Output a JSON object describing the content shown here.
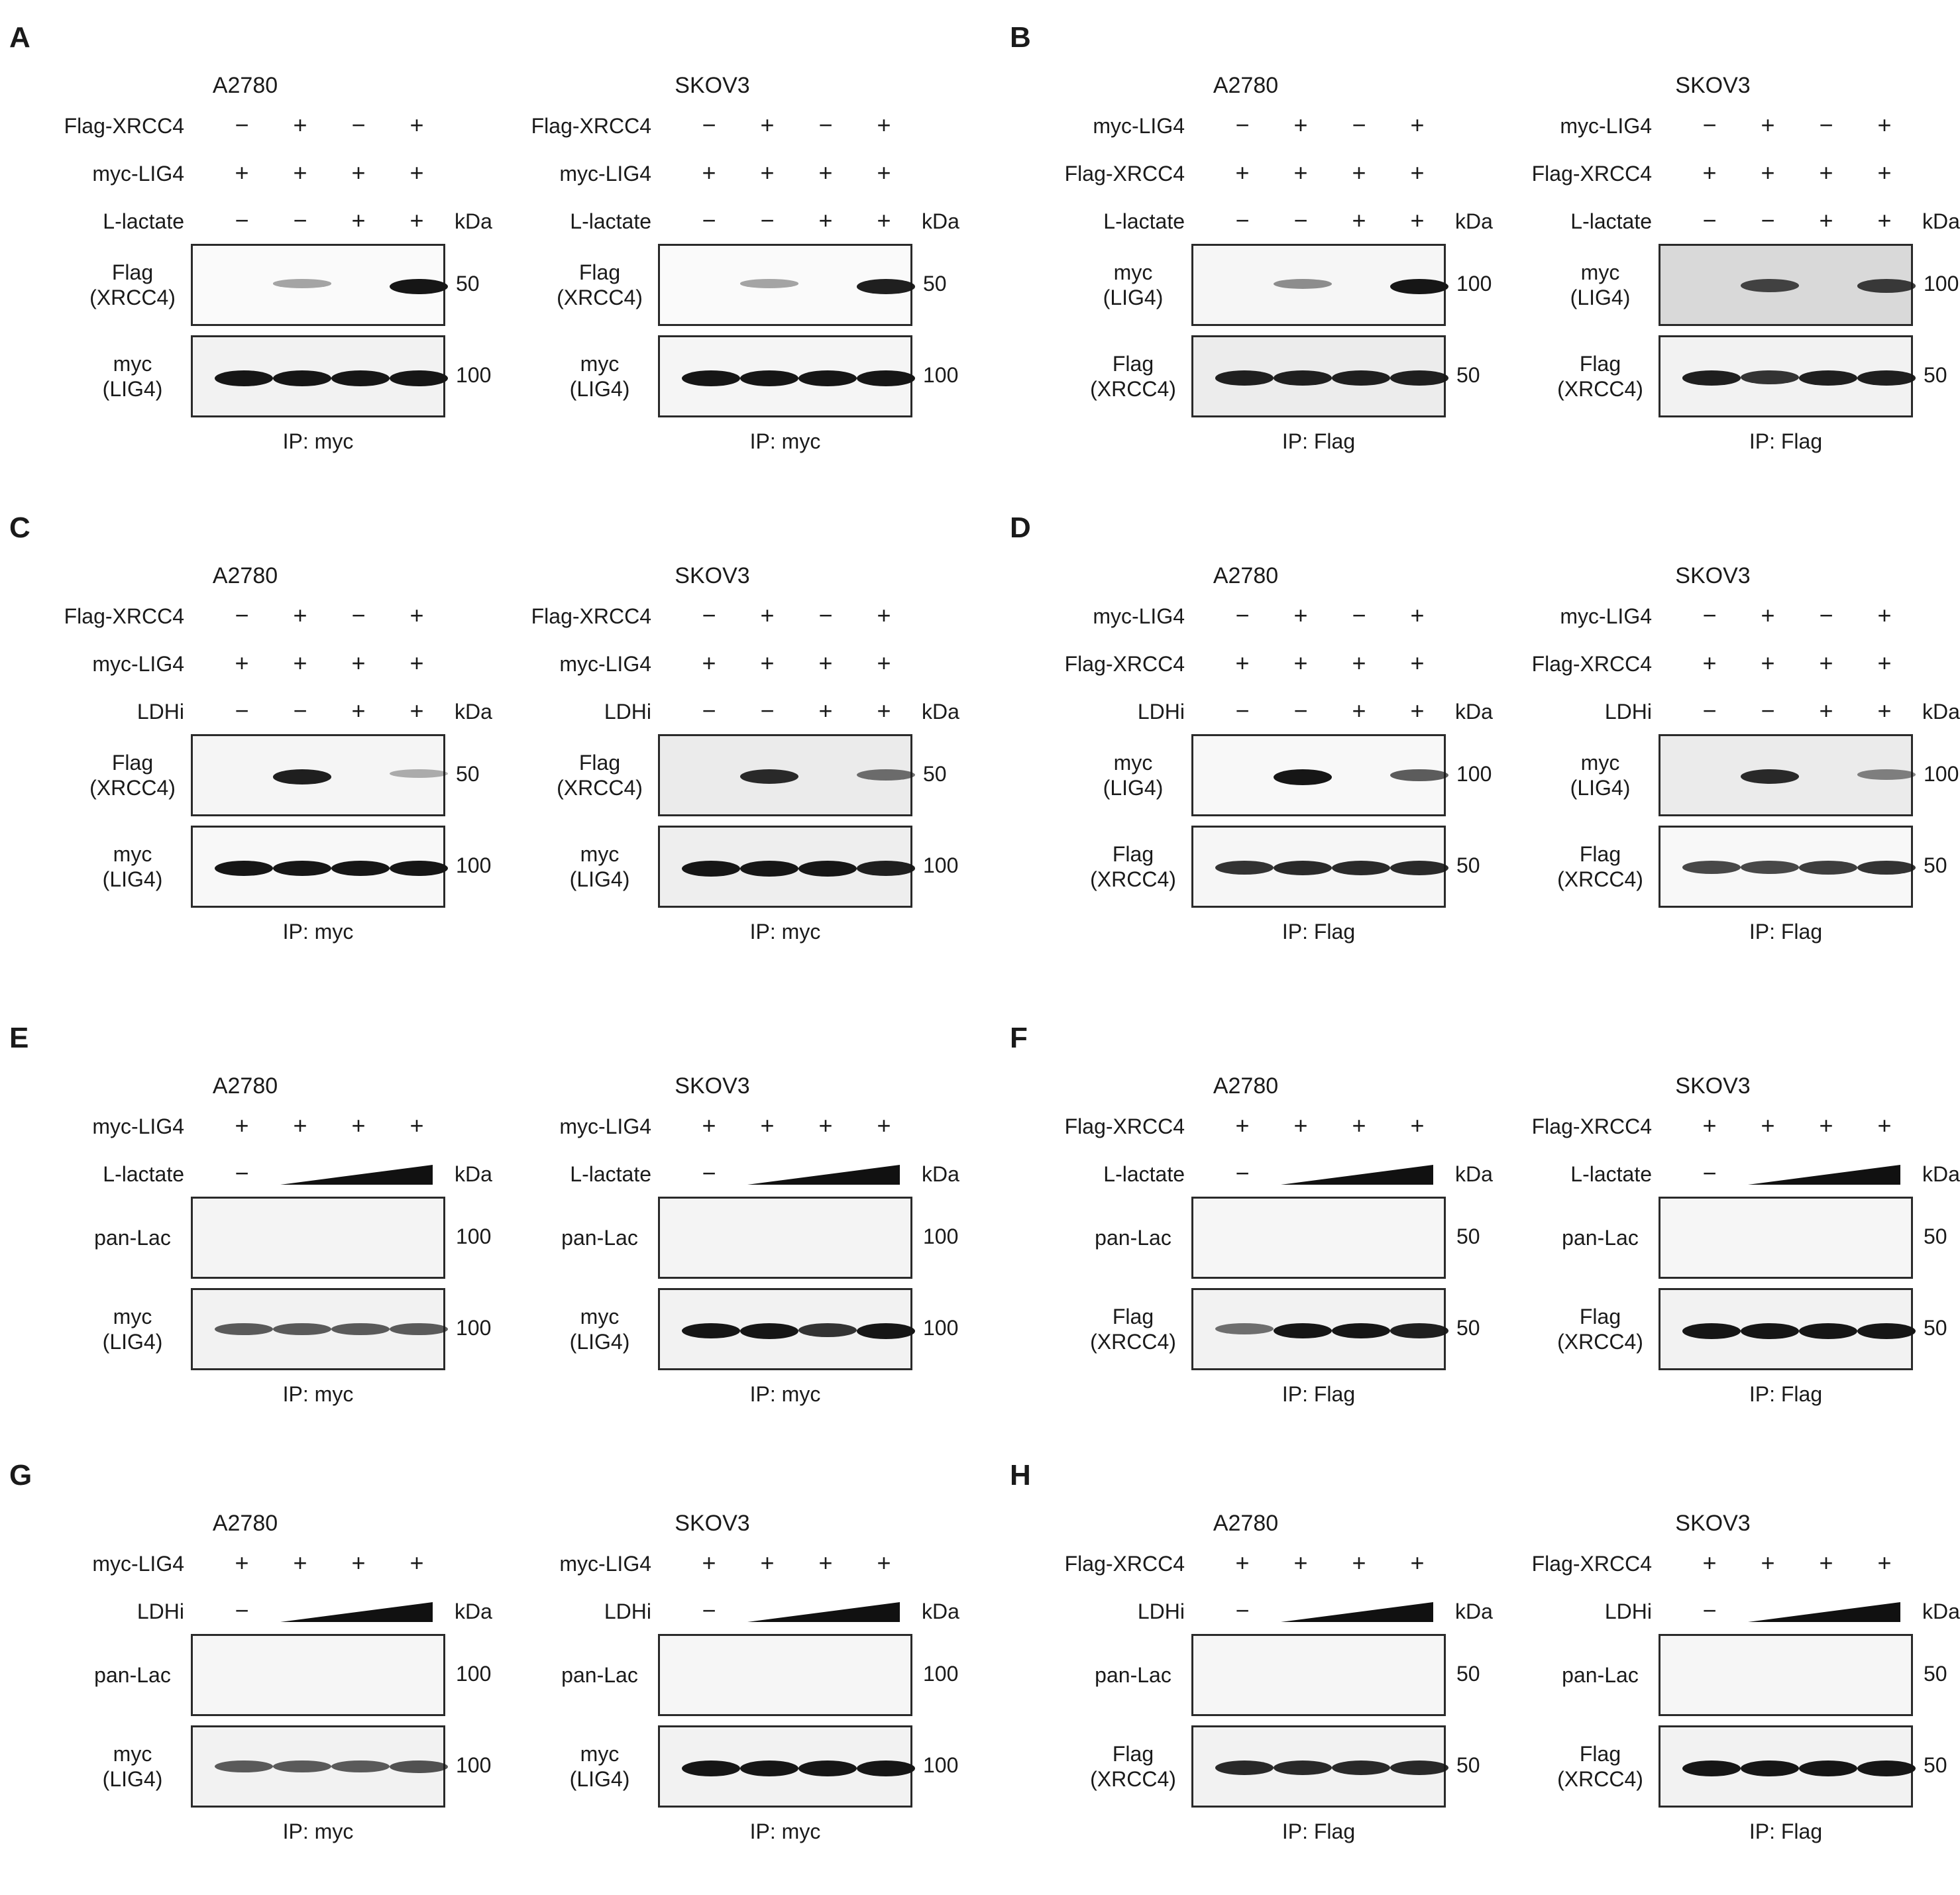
{
  "panels": [
    {
      "letter": "A",
      "blots": [
        {
          "title": "A2780",
          "conditions": [
            {
              "label": "Flag-XRCC4",
              "values": [
                "−",
                "+",
                "−",
                "+"
              ]
            },
            {
              "label": "myc-LIG4",
              "values": [
                "+",
                "+",
                "+",
                "+"
              ]
            },
            {
              "label": "L-lactate",
              "values": [
                "−",
                "−",
                "+",
                "+"
              ]
            }
          ],
          "kda": "kDa",
          "gels": [
            {
              "label": "Flag\n(XRCC4)",
              "mw": "50",
              "bands": [
                0,
                0.25,
                0,
                0.95
              ],
              "bg": "#fafafa"
            },
            {
              "label": "myc\n(LIG4)",
              "mw": "100",
              "bands": [
                1,
                1,
                1,
                1
              ],
              "bg": "#f2f2f2"
            }
          ],
          "ip": "IP: myc"
        },
        {
          "title": "SKOV3",
          "conditions": [
            {
              "label": "Flag-XRCC4",
              "values": [
                "−",
                "+",
                "−",
                "+"
              ]
            },
            {
              "label": "myc-LIG4",
              "values": [
                "+",
                "+",
                "+",
                "+"
              ]
            },
            {
              "label": "L-lactate",
              "values": [
                "−",
                "−",
                "+",
                "+"
              ]
            }
          ],
          "kda": "kDa",
          "gels": [
            {
              "label": "Flag\n(XRCC4)",
              "mw": "50",
              "bands": [
                0,
                0.25,
                0,
                0.9
              ],
              "bg": "#fafafa"
            },
            {
              "label": "myc\n(LIG4)",
              "mw": "100",
              "bands": [
                1,
                1,
                1,
                1
              ],
              "bg": "#f5f5f5"
            }
          ],
          "ip": "IP: myc"
        }
      ]
    },
    {
      "letter": "B",
      "blots": [
        {
          "title": "A2780",
          "conditions": [
            {
              "label": "myc-LIG4",
              "values": [
                "−",
                "+",
                "−",
                "+"
              ]
            },
            {
              "label": "Flag-XRCC4",
              "values": [
                "+",
                "+",
                "+",
                "+"
              ]
            },
            {
              "label": "L-lactate",
              "values": [
                "−",
                "−",
                "+",
                "+"
              ]
            }
          ],
          "kda": "kDa",
          "gels": [
            {
              "label": "myc\n(LIG4)",
              "mw": "100",
              "bands": [
                0,
                0.35,
                0,
                0.95
              ],
              "bg": "#f6f6f6"
            },
            {
              "label": "Flag\n(XRCC4)",
              "mw": "50",
              "bands": [
                0.9,
                0.9,
                0.9,
                0.9
              ],
              "bg": "#ececec"
            }
          ],
          "ip": "IP: Flag"
        },
        {
          "title": "SKOV3",
          "conditions": [
            {
              "label": "myc-LIG4",
              "values": [
                "−",
                "+",
                "−",
                "+"
              ]
            },
            {
              "label": "Flag-XRCC4",
              "values": [
                "+",
                "+",
                "+",
                "+"
              ]
            },
            {
              "label": "L-lactate",
              "values": [
                "−",
                "−",
                "+",
                "+"
              ]
            }
          ],
          "kda": "kDa",
          "gels": [
            {
              "label": "myc\n(LIG4)",
              "mw": "100",
              "bands": [
                0,
                0.7,
                0,
                0.75
              ],
              "bg": "#d9d9d9"
            },
            {
              "label": "Flag\n(XRCC4)",
              "mw": "50",
              "bands": [
                0.9,
                0.8,
                0.9,
                0.9
              ],
              "bg": "#f2f2f2"
            }
          ],
          "ip": "IP: Flag"
        }
      ]
    },
    {
      "letter": "C",
      "blots": [
        {
          "title": "A2780",
          "conditions": [
            {
              "label": "Flag-XRCC4",
              "values": [
                "−",
                "+",
                "−",
                "+"
              ]
            },
            {
              "label": "myc-LIG4",
              "values": [
                "+",
                "+",
                "+",
                "+"
              ]
            },
            {
              "label": "LDHi",
              "values": [
                "−",
                "−",
                "+",
                "+"
              ]
            }
          ],
          "kda": "kDa",
          "gels": [
            {
              "label": "Flag\n(XRCC4)",
              "mw": "50",
              "bands": [
                0,
                0.9,
                0,
                0.2
              ],
              "bg": "#f5f5f5"
            },
            {
              "label": "myc\n(LIG4)",
              "mw": "100",
              "bands": [
                0.95,
                0.95,
                0.95,
                0.95
              ],
              "bg": "#f8f8f8"
            }
          ],
          "ip": "IP: myc"
        },
        {
          "title": "SKOV3",
          "conditions": [
            {
              "label": "Flag-XRCC4",
              "values": [
                "−",
                "+",
                "−",
                "+"
              ]
            },
            {
              "label": "myc-LIG4",
              "values": [
                "+",
                "+",
                "+",
                "+"
              ]
            },
            {
              "label": "LDHi",
              "values": [
                "−",
                "−",
                "+",
                "+"
              ]
            }
          ],
          "kda": "kDa",
          "gels": [
            {
              "label": "Flag\n(XRCC4)",
              "mw": "50",
              "bands": [
                0,
                0.85,
                0,
                0.5
              ],
              "bg": "#ebebeb"
            },
            {
              "label": "myc\n(LIG4)",
              "mw": "100",
              "bands": [
                1,
                1,
                1,
                0.9
              ],
              "bg": "#eeeeee"
            }
          ],
          "ip": "IP: myc"
        }
      ]
    },
    {
      "letter": "D",
      "blots": [
        {
          "title": "A2780",
          "conditions": [
            {
              "label": "myc-LIG4",
              "values": [
                "−",
                "+",
                "−",
                "+"
              ]
            },
            {
              "label": "Flag-XRCC4",
              "values": [
                "+",
                "+",
                "+",
                "+"
              ]
            },
            {
              "label": "LDHi",
              "values": [
                "−",
                "−",
                "+",
                "+"
              ]
            }
          ],
          "kda": "kDa",
          "gels": [
            {
              "label": "myc\n(LIG4)",
              "mw": "100",
              "bands": [
                0,
                1,
                0,
                0.6
              ],
              "bg": "#f8f8f8"
            },
            {
              "label": "Flag\n(XRCC4)",
              "mw": "50",
              "bands": [
                0.8,
                0.85,
                0.85,
                0.85
              ],
              "bg": "#f6f6f6"
            }
          ],
          "ip": "IP: Flag"
        },
        {
          "title": "SKOV3",
          "conditions": [
            {
              "label": "myc-LIG4",
              "values": [
                "−",
                "+",
                "−",
                "+"
              ]
            },
            {
              "label": "Flag-XRCC4",
              "values": [
                "+",
                "+",
                "+",
                "+"
              ]
            },
            {
              "label": "LDHi",
              "values": [
                "−",
                "−",
                "+",
                "+"
              ]
            }
          ],
          "kda": "kDa",
          "gels": [
            {
              "label": "myc\n(LIG4)",
              "mw": "100",
              "bands": [
                0,
                0.85,
                0,
                0.4
              ],
              "bg": "#ebebeb"
            },
            {
              "label": "Flag\n(XRCC4)",
              "mw": "50",
              "bands": [
                0.7,
                0.7,
                0.75,
                0.8
              ],
              "bg": "#f8f8f8"
            }
          ],
          "ip": "IP: Flag"
        }
      ]
    },
    {
      "letter": "E",
      "blots": [
        {
          "title": "A2780",
          "conditions": [
            {
              "label": "myc-LIG4",
              "values": [
                "+",
                "+",
                "+",
                "+"
              ]
            },
            {
              "label": "L-lactate",
              "values": [
                "−"
              ],
              "wedge": true
            }
          ],
          "kda": "kDa",
          "gels": [
            {
              "label": "pan-Lac",
              "mw": "100",
              "bands": [
                0,
                0,
                0,
                0
              ],
              "bg": "#f4f4f4"
            },
            {
              "label": "myc\n(LIG4)",
              "mw": "100",
              "bands": [
                0.6,
                0.6,
                0.6,
                0.6
              ],
              "bg": "#f2f2f2"
            }
          ],
          "ip": "IP: myc"
        },
        {
          "title": "SKOV3",
          "conditions": [
            {
              "label": "myc-LIG4",
              "values": [
                "+",
                "+",
                "+",
                "+"
              ]
            },
            {
              "label": "L-lactate",
              "values": [
                "−"
              ],
              "wedge": true
            }
          ],
          "kda": "kDa",
          "gels": [
            {
              "label": "pan-Lac",
              "mw": "100",
              "bands": [
                0,
                0,
                0,
                0
              ],
              "bg": "#f4f4f4"
            },
            {
              "label": "myc\n(LIG4)",
              "mw": "100",
              "bands": [
                0.95,
                1,
                0.8,
                1
              ],
              "bg": "#f2f2f2"
            }
          ],
          "ip": "IP: myc"
        }
      ]
    },
    {
      "letter": "F",
      "blots": [
        {
          "title": "A2780",
          "conditions": [
            {
              "label": "Flag-XRCC4",
              "values": [
                "+",
                "+",
                "+",
                "+"
              ]
            },
            {
              "label": "L-lactate",
              "values": [
                "−"
              ],
              "wedge": true
            }
          ],
          "kda": "kDa",
          "gels": [
            {
              "label": "pan-Lac",
              "mw": "50",
              "bands": [
                0,
                0,
                0,
                0
              ],
              "bg": "#f6f6f6"
            },
            {
              "label": "Flag\n(XRCC4)",
              "mw": "50",
              "bands": [
                0.5,
                0.95,
                0.95,
                0.9
              ],
              "bg": "#f2f2f2"
            }
          ],
          "ip": "IP: Flag"
        },
        {
          "title": "SKOV3",
          "conditions": [
            {
              "label": "Flag-XRCC4",
              "values": [
                "+",
                "+",
                "+",
                "+"
              ]
            },
            {
              "label": "L-lactate",
              "values": [
                "−"
              ],
              "wedge": true
            }
          ],
          "kda": "kDa",
          "gels": [
            {
              "label": "pan-Lac",
              "mw": "50",
              "bands": [
                0,
                0,
                0,
                0
              ],
              "bg": "#f6f6f6"
            },
            {
              "label": "Flag\n(XRCC4)",
              "mw": "50",
              "bands": [
                1,
                1,
                1,
                1
              ],
              "bg": "#f2f2f2"
            }
          ],
          "ip": "IP: Flag"
        }
      ]
    },
    {
      "letter": "G",
      "blots": [
        {
          "title": "A2780",
          "conditions": [
            {
              "label": "myc-LIG4",
              "values": [
                "+",
                "+",
                "+",
                "+"
              ]
            },
            {
              "label": "LDHi",
              "values": [
                "−"
              ],
              "wedge": true
            }
          ],
          "kda": "kDa",
          "gels": [
            {
              "label": "pan-Lac",
              "mw": "100",
              "bands": [
                0,
                0,
                0,
                0
              ],
              "bg": "#f6f6f6"
            },
            {
              "label": "myc\n(LIG4)",
              "mw": "100",
              "bands": [
                0.6,
                0.6,
                0.6,
                0.65
              ],
              "bg": "#f2f2f2"
            }
          ],
          "ip": "IP: myc"
        },
        {
          "title": "SKOV3",
          "conditions": [
            {
              "label": "myc-LIG4",
              "values": [
                "+",
                "+",
                "+",
                "+"
              ]
            },
            {
              "label": "LDHi",
              "values": [
                "−"
              ],
              "wedge": true
            }
          ],
          "kda": "kDa",
          "gels": [
            {
              "label": "pan-Lac",
              "mw": "100",
              "bands": [
                0,
                0,
                0,
                0
              ],
              "bg": "#f6f6f6"
            },
            {
              "label": "myc\n(LIG4)",
              "mw": "100",
              "bands": [
                1,
                1,
                1,
                1
              ],
              "bg": "#f2f2f2"
            }
          ],
          "ip": "IP: myc"
        }
      ]
    },
    {
      "letter": "H",
      "blots": [
        {
          "title": "A2780",
          "conditions": [
            {
              "label": "Flag-XRCC4",
              "values": [
                "+",
                "+",
                "+",
                "+"
              ]
            },
            {
              "label": "LDHi",
              "values": [
                "−"
              ],
              "wedge": true
            }
          ],
          "kda": "kDa",
          "gels": [
            {
              "label": "pan-Lac",
              "mw": "50",
              "bands": [
                0,
                0,
                0,
                0
              ],
              "bg": "#f6f6f6"
            },
            {
              "label": "Flag\n(XRCC4)",
              "mw": "50",
              "bands": [
                0.85,
                0.85,
                0.85,
                0.85
              ],
              "bg": "#f2f2f2"
            }
          ],
          "ip": "IP: Flag"
        },
        {
          "title": "SKOV3",
          "conditions": [
            {
              "label": "Flag-XRCC4",
              "values": [
                "+",
                "+",
                "+",
                "+"
              ]
            },
            {
              "label": "LDHi",
              "values": [
                "−"
              ],
              "wedge": true
            }
          ],
          "kda": "kDa",
          "gels": [
            {
              "label": "pan-Lac",
              "mw": "50",
              "bands": [
                0,
                0,
                0,
                0
              ],
              "bg": "#f6f6f6"
            },
            {
              "label": "Flag\n(XRCC4)",
              "mw": "50",
              "bands": [
                1,
                1,
                1,
                1
              ],
              "bg": "#f2f2f2"
            }
          ],
          "ip": "IP: Flag"
        }
      ]
    }
  ]
}
